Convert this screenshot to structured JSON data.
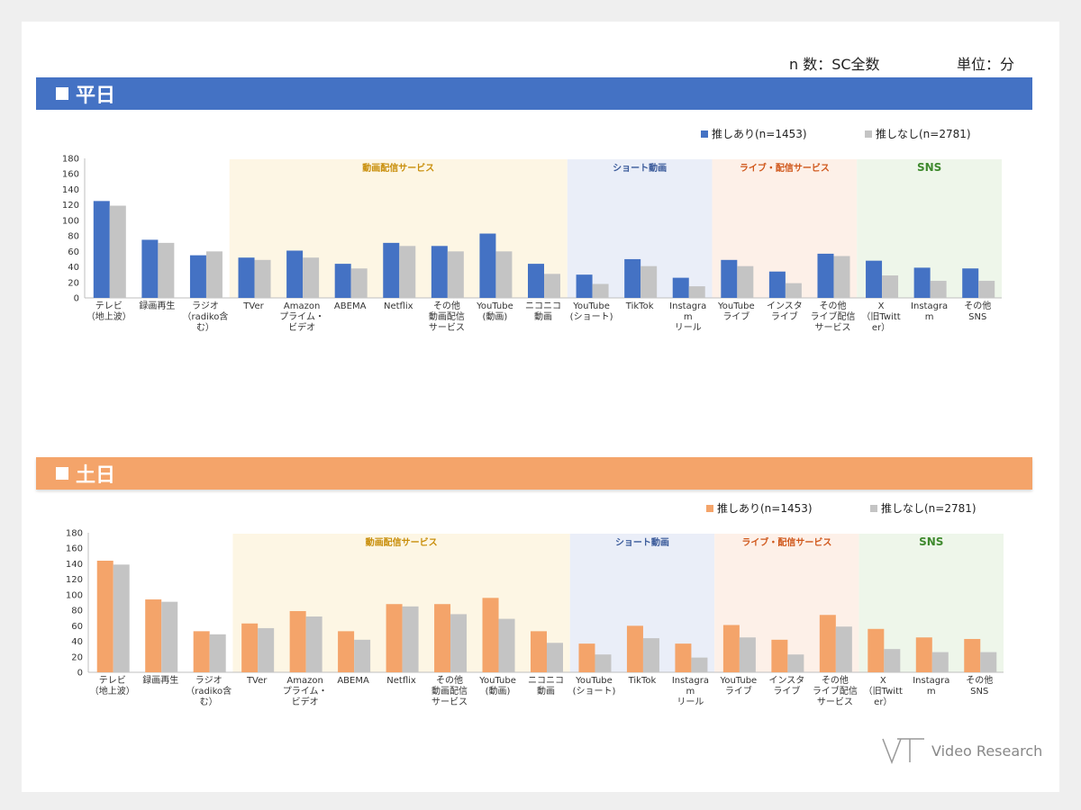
{
  "meta": {
    "n_label": "n 数：SC全数",
    "unit_label": "単位：分"
  },
  "brand": {
    "name": "Video Research"
  },
  "colors": {
    "blue": "#4472c4",
    "orange": "#f4a46a",
    "gray": "#c4c4c4",
    "streaming_band": "#fdf6e4",
    "short_band": "#eaeef8",
    "live_band": "#fdf0e8",
    "sns_band": "#eef6ea",
    "streaming_text": "#c98f0c",
    "short_text": "#3a5a9a",
    "live_text": "#d0581c",
    "sns_text": "#3f8a2e"
  },
  "charts": [
    {
      "section_title": "平日",
      "legend": [
        "推しあり(n=1453)",
        "推しなし(n=2781)"
      ],
      "chart_data": {
        "type": "bar",
        "ylim": [
          0,
          180
        ],
        "yticks": [
          0,
          20,
          40,
          60,
          80,
          100,
          120,
          140,
          160,
          180
        ],
        "categories": [
          "テレビ\n（地上波）",
          "録画再生",
          "ラジオ\n（radiko含\nむ）",
          "TVer",
          "Amazon\nプライム・\nビデオ",
          "ABEMA",
          "Netflix",
          "その他\n動画配信\nサービス",
          "YouTube\n(動画)",
          "ニコニコ\n動画",
          "YouTube\n(ショート)",
          "TikTok",
          "Instagra\nm\nリール",
          "YouTube\nライブ",
          "インスタ\nライブ",
          "その他\nライブ配信\nサービス",
          "X\n（旧Twitt\ner）",
          "Instagra\nm",
          "その他\nSNS"
        ],
        "groups": [
          {
            "label": "動画配信サービス",
            "start": 3,
            "end": 9
          },
          {
            "label": "ショート動画",
            "start": 10,
            "end": 12
          },
          {
            "label": "ライブ・配信サービス",
            "start": 13,
            "end": 15
          },
          {
            "label": "SNS",
            "start": 16,
            "end": 18
          }
        ],
        "series": [
          {
            "name": "推しあり(n=1453)",
            "values": [
              125,
              75,
              55,
              52,
              61,
              44,
              71,
              67,
              83,
              44,
              30,
              50,
              26,
              49,
              34,
              57,
              48,
              39,
              38
            ]
          },
          {
            "name": "推しなし(n=2781)",
            "values": [
              119,
              71,
              60,
              49,
              52,
              38,
              67,
              60,
              60,
              31,
              18,
              41,
              15,
              41,
              19,
              54,
              29,
              22,
              22
            ]
          }
        ]
      }
    },
    {
      "section_title": "土日",
      "legend": [
        "推しあり(n=1453)",
        "推しなし(n=2781)"
      ],
      "chart_data": {
        "type": "bar",
        "ylim": [
          0,
          180
        ],
        "yticks": [
          0,
          20,
          40,
          60,
          80,
          100,
          120,
          140,
          160,
          180
        ],
        "categories": [
          "テレビ\n（地上波）",
          "録画再生",
          "ラジオ\n（radiko含\nむ）",
          "TVer",
          "Amazon\nプライム・\nビデオ",
          "ABEMA",
          "Netflix",
          "その他\n動画配信\nサービス",
          "YouTube\n(動画)",
          "ニコニコ\n動画",
          "YouTube\n(ショート)",
          "TikTok",
          "Instagra\nm\nリール",
          "YouTube\nライブ",
          "インスタ\nライブ",
          "その他\nライブ配信\nサービス",
          "X\n（旧Twitt\ner）",
          "Instagra\nm",
          "その他\nSNS"
        ],
        "groups": [
          {
            "label": "動画配信サービス",
            "start": 3,
            "end": 9
          },
          {
            "label": "ショート動画",
            "start": 10,
            "end": 12
          },
          {
            "label": "ライブ・配信サービス",
            "start": 13,
            "end": 15
          },
          {
            "label": "SNS",
            "start": 16,
            "end": 18
          }
        ],
        "series": [
          {
            "name": "推しあり(n=1453)",
            "values": [
              144,
              94,
              53,
              63,
              79,
              53,
              88,
              88,
              96,
              53,
              37,
              60,
              37,
              61,
              42,
              74,
              56,
              45,
              43
            ]
          },
          {
            "name": "推しなし(n=2781)",
            "values": [
              139,
              91,
              49,
              57,
              72,
              42,
              85,
              75,
              69,
              38,
              23,
              44,
              19,
              45,
              23,
              59,
              30,
              26,
              26
            ]
          }
        ]
      }
    }
  ]
}
